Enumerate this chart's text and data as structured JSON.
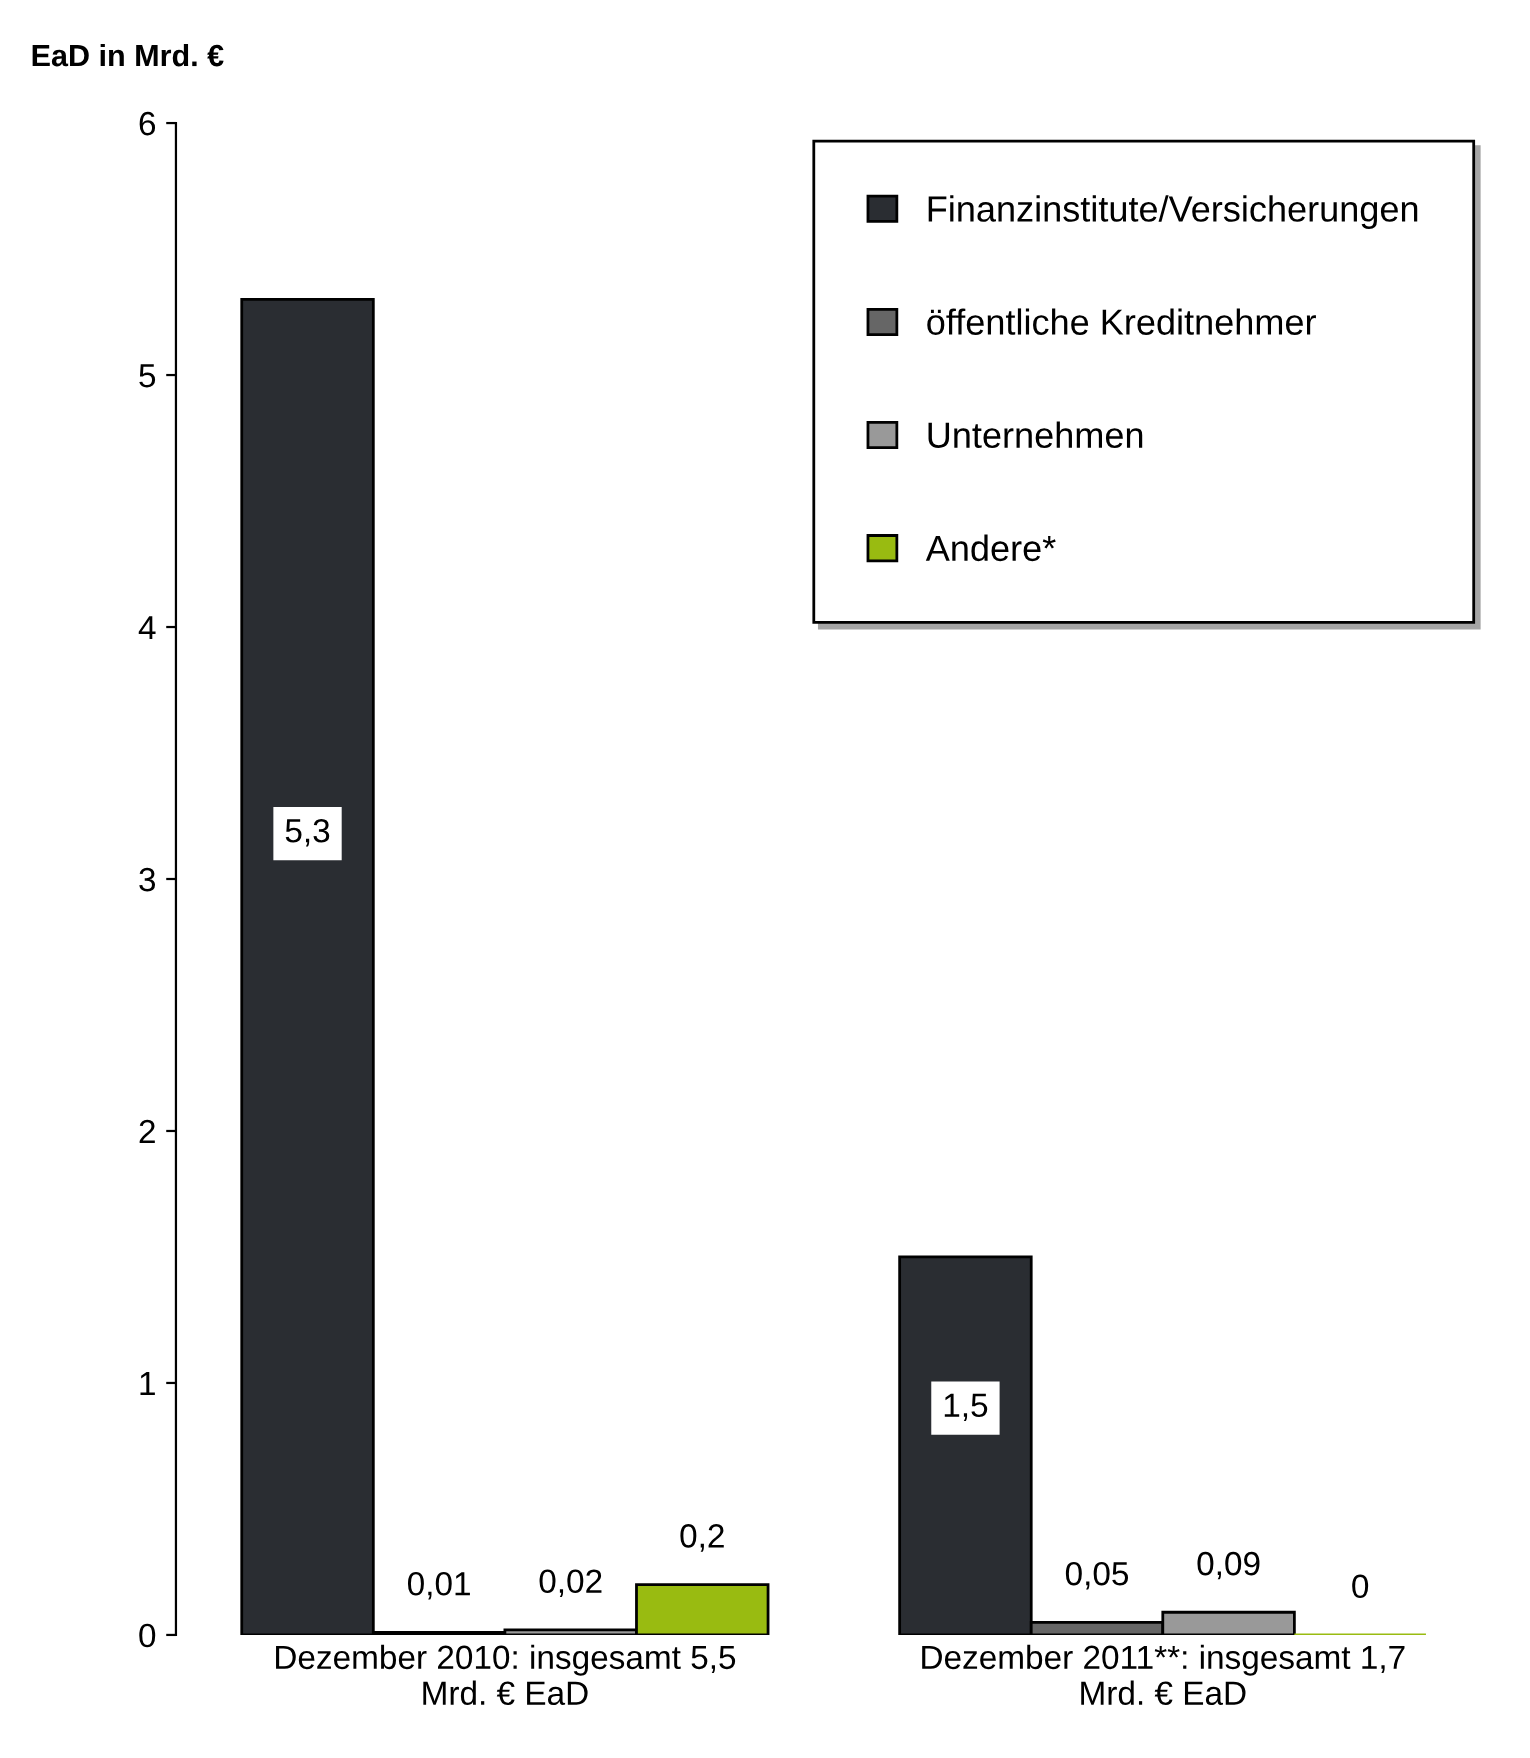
{
  "chart_data": {
    "type": "bar",
    "ylabel": "EaD in Mrd. €",
    "categories": [
      "Dezember 2010: insgesamt 5,5 Mrd. € EaD",
      "Dezember 2011**: insgesamt 1,7 Mrd. € EaD"
    ],
    "series": [
      {
        "name": "Finanzinstitute/Versicherungen",
        "color": "#2a2d32",
        "values": [
          5.3,
          1.5
        ],
        "value_labels": [
          "5,3",
          "1,5"
        ]
      },
      {
        "name": "öffentliche Kreditnehmer",
        "color": "#666666",
        "values": [
          0.01,
          0.05
        ],
        "value_labels": [
          "0,01",
          "0,05"
        ]
      },
      {
        "name": "Unternehmen",
        "color": "#999999",
        "values": [
          0.02,
          0.09
        ],
        "value_labels": [
          "0,02",
          "0,09"
        ]
      },
      {
        "name": "Andere*",
        "color": "#99bb11",
        "values": [
          0.2,
          0
        ],
        "value_labels": [
          "0,2",
          "0"
        ]
      }
    ],
    "ylim": [
      0,
      6
    ],
    "yticks": [
      0,
      1,
      2,
      3,
      4,
      5,
      6
    ],
    "grid": false,
    "legend": "top right"
  }
}
